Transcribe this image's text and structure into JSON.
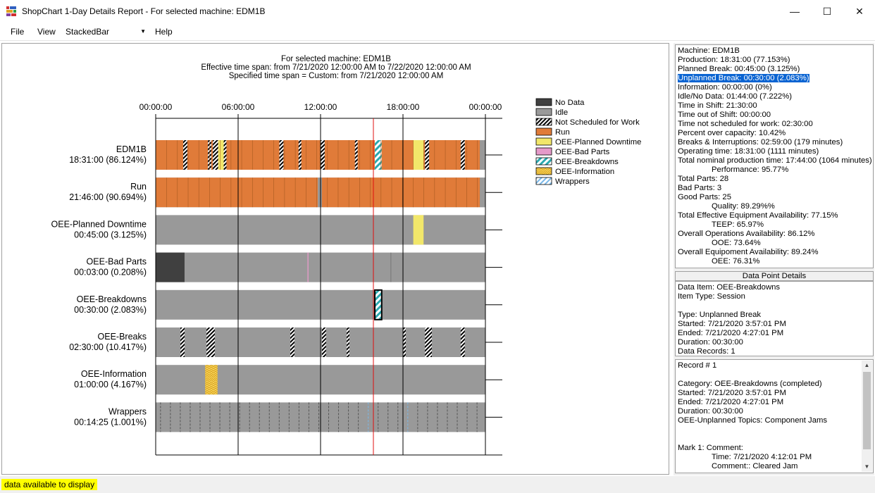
{
  "window": {
    "title": "ShopChart 1-Day Details Report - For selected machine: EDM1B",
    "minimize": "—",
    "maximize": "☐",
    "close": "✕"
  },
  "menu": {
    "file": "File",
    "view": "View",
    "chart_type": "StackedBar",
    "help": "Help"
  },
  "chart_header": {
    "line1": "For selected machine: EDM1B",
    "line2": "Effective time span: from 7/21/2020 12:00:00 AM to 7/22/2020 12:00:00 AM",
    "line3": "Specified time span = Custom: from 7/21/2020 12:00:00 AM"
  },
  "chart_data": {
    "type": "timeline",
    "x_ticks": [
      "00:00:00",
      "06:00:00",
      "12:00:00",
      "18:00:00",
      "00:00:00"
    ],
    "x_range_hours": [
      0,
      24
    ],
    "cursor_hour": 16,
    "highlight_segment": {
      "row": "OEE-Breakdowns",
      "start_hour": 15.95,
      "end_hour": 16.45
    },
    "rows": [
      {
        "name": "EDM1B",
        "value": "18:31:00 (86.124%)"
      },
      {
        "name": "Run",
        "value": "21:46:00 (90.694%)"
      },
      {
        "name": "OEE-Planned Downtime",
        "value": "00:45:00 (3.125%)"
      },
      {
        "name": "OEE-Bad Parts",
        "value": "00:03:00 (0.208%)"
      },
      {
        "name": "OEE-Breakdowns",
        "value": "00:30:00 (2.083%)"
      },
      {
        "name": "OEE-Breaks",
        "value": "02:30:00 (10.417%)"
      },
      {
        "name": "OEE-Information",
        "value": "01:00:00 (4.167%)"
      },
      {
        "name": "Wrappers",
        "value": "00:14:25 (1.001%)"
      }
    ],
    "legend": [
      {
        "label": "No Data",
        "color": "#404040",
        "pattern": "solid"
      },
      {
        "label": "Idle",
        "color": "#999999",
        "pattern": "solid"
      },
      {
        "label": "Not Scheduled for Work",
        "color": "#000000",
        "pattern": "hatch"
      },
      {
        "label": "Run",
        "color": "#e07b39",
        "pattern": "solid"
      },
      {
        "label": "OEE-Planned Downtime",
        "color": "#f2e76a",
        "pattern": "solid"
      },
      {
        "label": "OEE-Bad Parts",
        "color": "#e59ac9",
        "pattern": "solid"
      },
      {
        "label": "OEE-Breakdowns",
        "color": "#2aa9b0",
        "pattern": "hatch"
      },
      {
        "label": "OEE-Information",
        "color": "#f0c030",
        "pattern": "zigzag"
      },
      {
        "label": "Wrappers",
        "color": "#7ab8e8",
        "pattern": "hatch"
      }
    ]
  },
  "summary": {
    "lines": [
      "Machine: EDM1B",
      "Production: 18:31:00 (77.153%)",
      "Planned Break: 00:45:00 (3.125%)",
      "Unplanned Break: 00:30:00 (2.083%)",
      "Information: 00:00:00 (0%)",
      "Idle/No Data: 01:44:00 (7.222%)",
      "Time in Shift: 21:30:00",
      "Time out of Shift: 00:00:00",
      "Time not scheduled for work: 02:30:00",
      "Percent over capacity: 10.42%",
      "Breaks & Interruptions: 02:59:00 (179 minutes)",
      "Operating time: 18:31:00 (1111 minutes)",
      "Total nominal production time: 17:44:00 (1064 minutes)",
      "Performance: 95.77%",
      "Total Parts: 28",
      "Bad Parts: 3",
      "Good Parts: 25",
      "Quality: 89.29%%",
      "Total Effective Equipment Availability: 77.15%",
      "TEEP: 65.97%",
      "Overall Operations Availability: 86.12%",
      "OOE: 73.64%",
      "Overall Equipoment Availability: 89.24%",
      "OEE: 76.31%"
    ]
  },
  "data_point": {
    "header": "Data Point Details",
    "lines": [
      "Data Item: OEE-Breakdowns",
      "Item Type: Session",
      "",
      "Type: Unplanned Break",
      "Started: 7/21/2020 3:57:01 PM",
      "Ended: 7/21/2020 4:27:01 PM",
      "Duration: 00:30:00",
      "Data Records: 1"
    ]
  },
  "record": {
    "lines": [
      "Record # 1",
      "",
      "Category: OEE-Breakdowns (completed)",
      "Started: 7/21/2020 3:57:01 PM",
      "Ended: 7/21/2020 4:27:01 PM",
      "Duration: 00:30:00",
      "OEE-Unplanned Topics: Component Jams",
      "",
      "",
      "Mark 1: Comment:",
      "Time: 7/21/2020 4:12:01 PM",
      "Comment:: Cleared Jam"
    ]
  },
  "status": {
    "text": "data available to display"
  }
}
